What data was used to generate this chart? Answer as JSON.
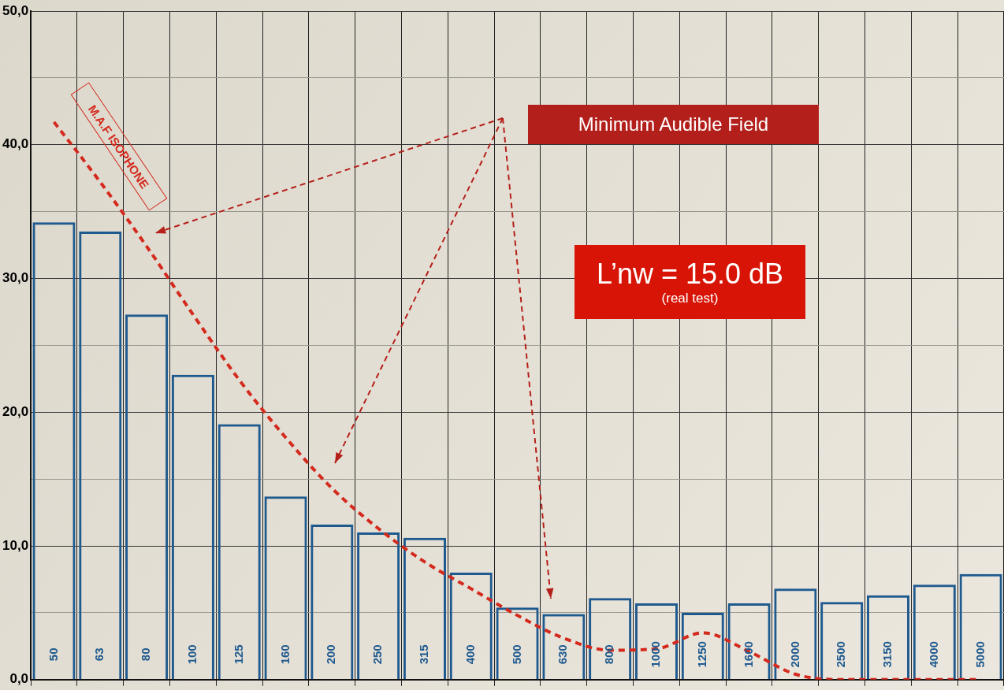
{
  "chart_data": {
    "type": "bar",
    "categories": [
      "50",
      "63",
      "80",
      "100",
      "125",
      "160",
      "200",
      "250",
      "315",
      "400",
      "500",
      "630",
      "800",
      "1000",
      "1250",
      "1600",
      "2000",
      "2500",
      "3150",
      "4000",
      "5000"
    ],
    "series": [
      {
        "color": "#1f5a8f",
        "values": [
          34.2,
          33.5,
          27.3,
          22.8,
          19.1,
          13.7,
          11.6,
          11.0,
          10.6,
          8.0,
          5.4,
          4.9,
          6.1,
          5.7,
          5.0,
          5.7,
          6.8,
          5.8,
          6.3,
          7.1,
          7.9
        ]
      },
      {
        "type": "line",
        "color": "#d42a1e",
        "line_style": "dashed",
        "marker": "none",
        "values": [
          41.7,
          37.2,
          32.4,
          27.3,
          22.4,
          18.1,
          14.3,
          11.3,
          8.8,
          6.8,
          4.8,
          3.1,
          2.2,
          2.3,
          3.5,
          2.1,
          0.4,
          0,
          0,
          0,
          0
        ]
      }
    ],
    "ylim": [
      0,
      50
    ],
    "yticks": [
      {
        "value": 0,
        "label": "0,0"
      },
      {
        "value": 5,
        "label": null
      },
      {
        "value": 10,
        "label": "10,0"
      },
      {
        "value": 15,
        "label": null
      },
      {
        "value": 20,
        "label": "20,0"
      },
      {
        "value": 25,
        "label": null
      },
      {
        "value": 30,
        "label": "30,0"
      },
      {
        "value": 35,
        "label": null
      },
      {
        "value": 40,
        "label": "40,0"
      },
      {
        "value": 45,
        "label": null
      },
      {
        "value": 50,
        "label": "50,0"
      }
    ],
    "grid": true,
    "legend": false,
    "annotations": [
      "Minimum Audible Field",
      "L’nw = 15.0 dB",
      "(real test)",
      "M.A.F ISOPHONE"
    ]
  }
}
